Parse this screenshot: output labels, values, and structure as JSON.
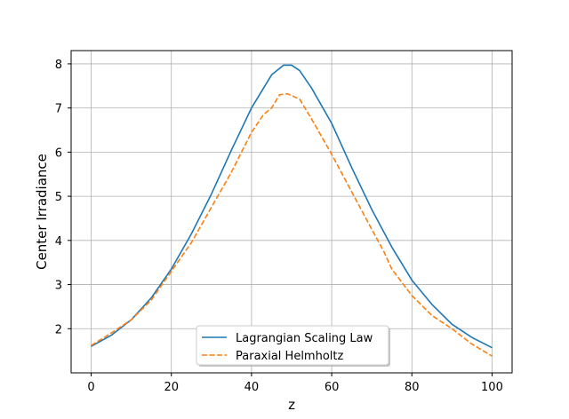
{
  "chart_data": {
    "type": "line",
    "title": "",
    "xlabel": "z",
    "ylabel": "Center Irradiance",
    "xlim": [
      -5,
      105
    ],
    "ylim": [
      1.0,
      8.3
    ],
    "xticks": [
      0,
      20,
      40,
      60,
      80,
      100
    ],
    "yticks": [
      2,
      3,
      4,
      5,
      6,
      7,
      8
    ],
    "grid": true,
    "legend_position": "lower center",
    "series": [
      {
        "name": "Lagrangian Scaling Law",
        "color": "#1f77b4",
        "style": "solid",
        "x": [
          0,
          5,
          10,
          15,
          20,
          25,
          30,
          35,
          40,
          45,
          48,
          50,
          52,
          55,
          60,
          65,
          70,
          75,
          80,
          85,
          90,
          95,
          100
        ],
        "y": [
          1.6,
          1.85,
          2.2,
          2.7,
          3.35,
          4.15,
          5.05,
          6.05,
          7.0,
          7.75,
          7.97,
          7.97,
          7.85,
          7.45,
          6.65,
          5.65,
          4.7,
          3.85,
          3.1,
          2.55,
          2.1,
          1.8,
          1.57
        ]
      },
      {
        "name": "Paraxial Helmholtz",
        "color": "#ff7f0e",
        "style": "dashed",
        "x": [
          0,
          5,
          10,
          15,
          20,
          25,
          30,
          35,
          40,
          43,
          45,
          47,
          49,
          50,
          52,
          55,
          60,
          65,
          70,
          73,
          75,
          80,
          85,
          90,
          95,
          100
        ],
        "y": [
          1.62,
          1.9,
          2.2,
          2.65,
          3.3,
          3.95,
          4.75,
          5.55,
          6.45,
          6.85,
          7.0,
          7.3,
          7.32,
          7.28,
          7.2,
          6.75,
          5.95,
          5.1,
          4.25,
          3.75,
          3.35,
          2.75,
          2.3,
          2.0,
          1.65,
          1.38
        ]
      }
    ]
  }
}
